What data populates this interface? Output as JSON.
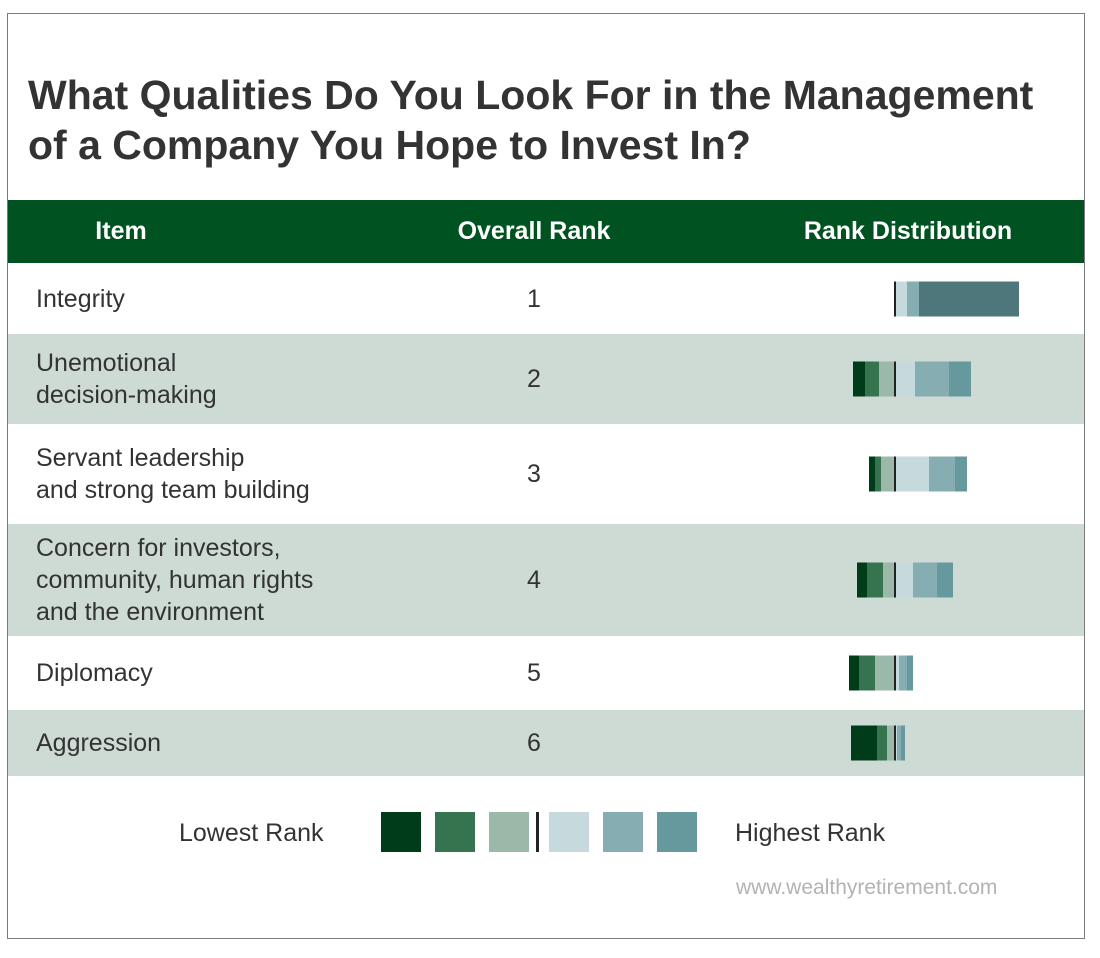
{
  "title": "What Qualities Do You Look For in the Management\nof a Company You Hope to Invest In?",
  "header": {
    "item": "Item",
    "overall_rank": "Overall Rank",
    "rank_distribution": "Rank Distribution"
  },
  "legend": {
    "low_label": "Lowest Rank",
    "high_label": "Highest Rank",
    "colors": [
      "#003c1a",
      "#35744f",
      "#9bb9a8",
      "#c6dade",
      "#86aeb2",
      "#66999e"
    ]
  },
  "footer": "www.wealthyretirement.com",
  "colors": {
    "header_bg": "#005320",
    "shaded_row": "#cddbd4",
    "divider": "#222222",
    "alt_dark": "#4e777b"
  },
  "chart_data": {
    "type": "table",
    "columns": [
      "Item",
      "Overall Rank",
      "Rank Distribution"
    ],
    "rows": [
      {
        "item": "Integrity",
        "rank": "1",
        "segments": [
          0,
          0,
          0,
          6,
          6,
          50
        ]
      },
      {
        "item": "Unemotional\ndecision-making",
        "rank": "2",
        "segments": [
          6,
          7,
          8,
          10,
          17,
          11
        ]
      },
      {
        "item": "Servant leadership\nand strong team building",
        "rank": "3",
        "segments": [
          3,
          3,
          7,
          17,
          13,
          6
        ]
      },
      {
        "item": "Concern for investors,\ncommunity, human rights\nand the environment",
        "rank": "4",
        "segments": [
          5,
          8,
          6,
          9,
          12,
          8
        ]
      },
      {
        "item": "Diplomacy",
        "rank": "5",
        "segments": [
          5,
          8,
          10,
          2,
          4,
          3
        ]
      },
      {
        "item": "Aggression",
        "rank": "6",
        "segments": [
          13,
          5,
          4,
          1,
          2,
          2
        ]
      }
    ]
  }
}
